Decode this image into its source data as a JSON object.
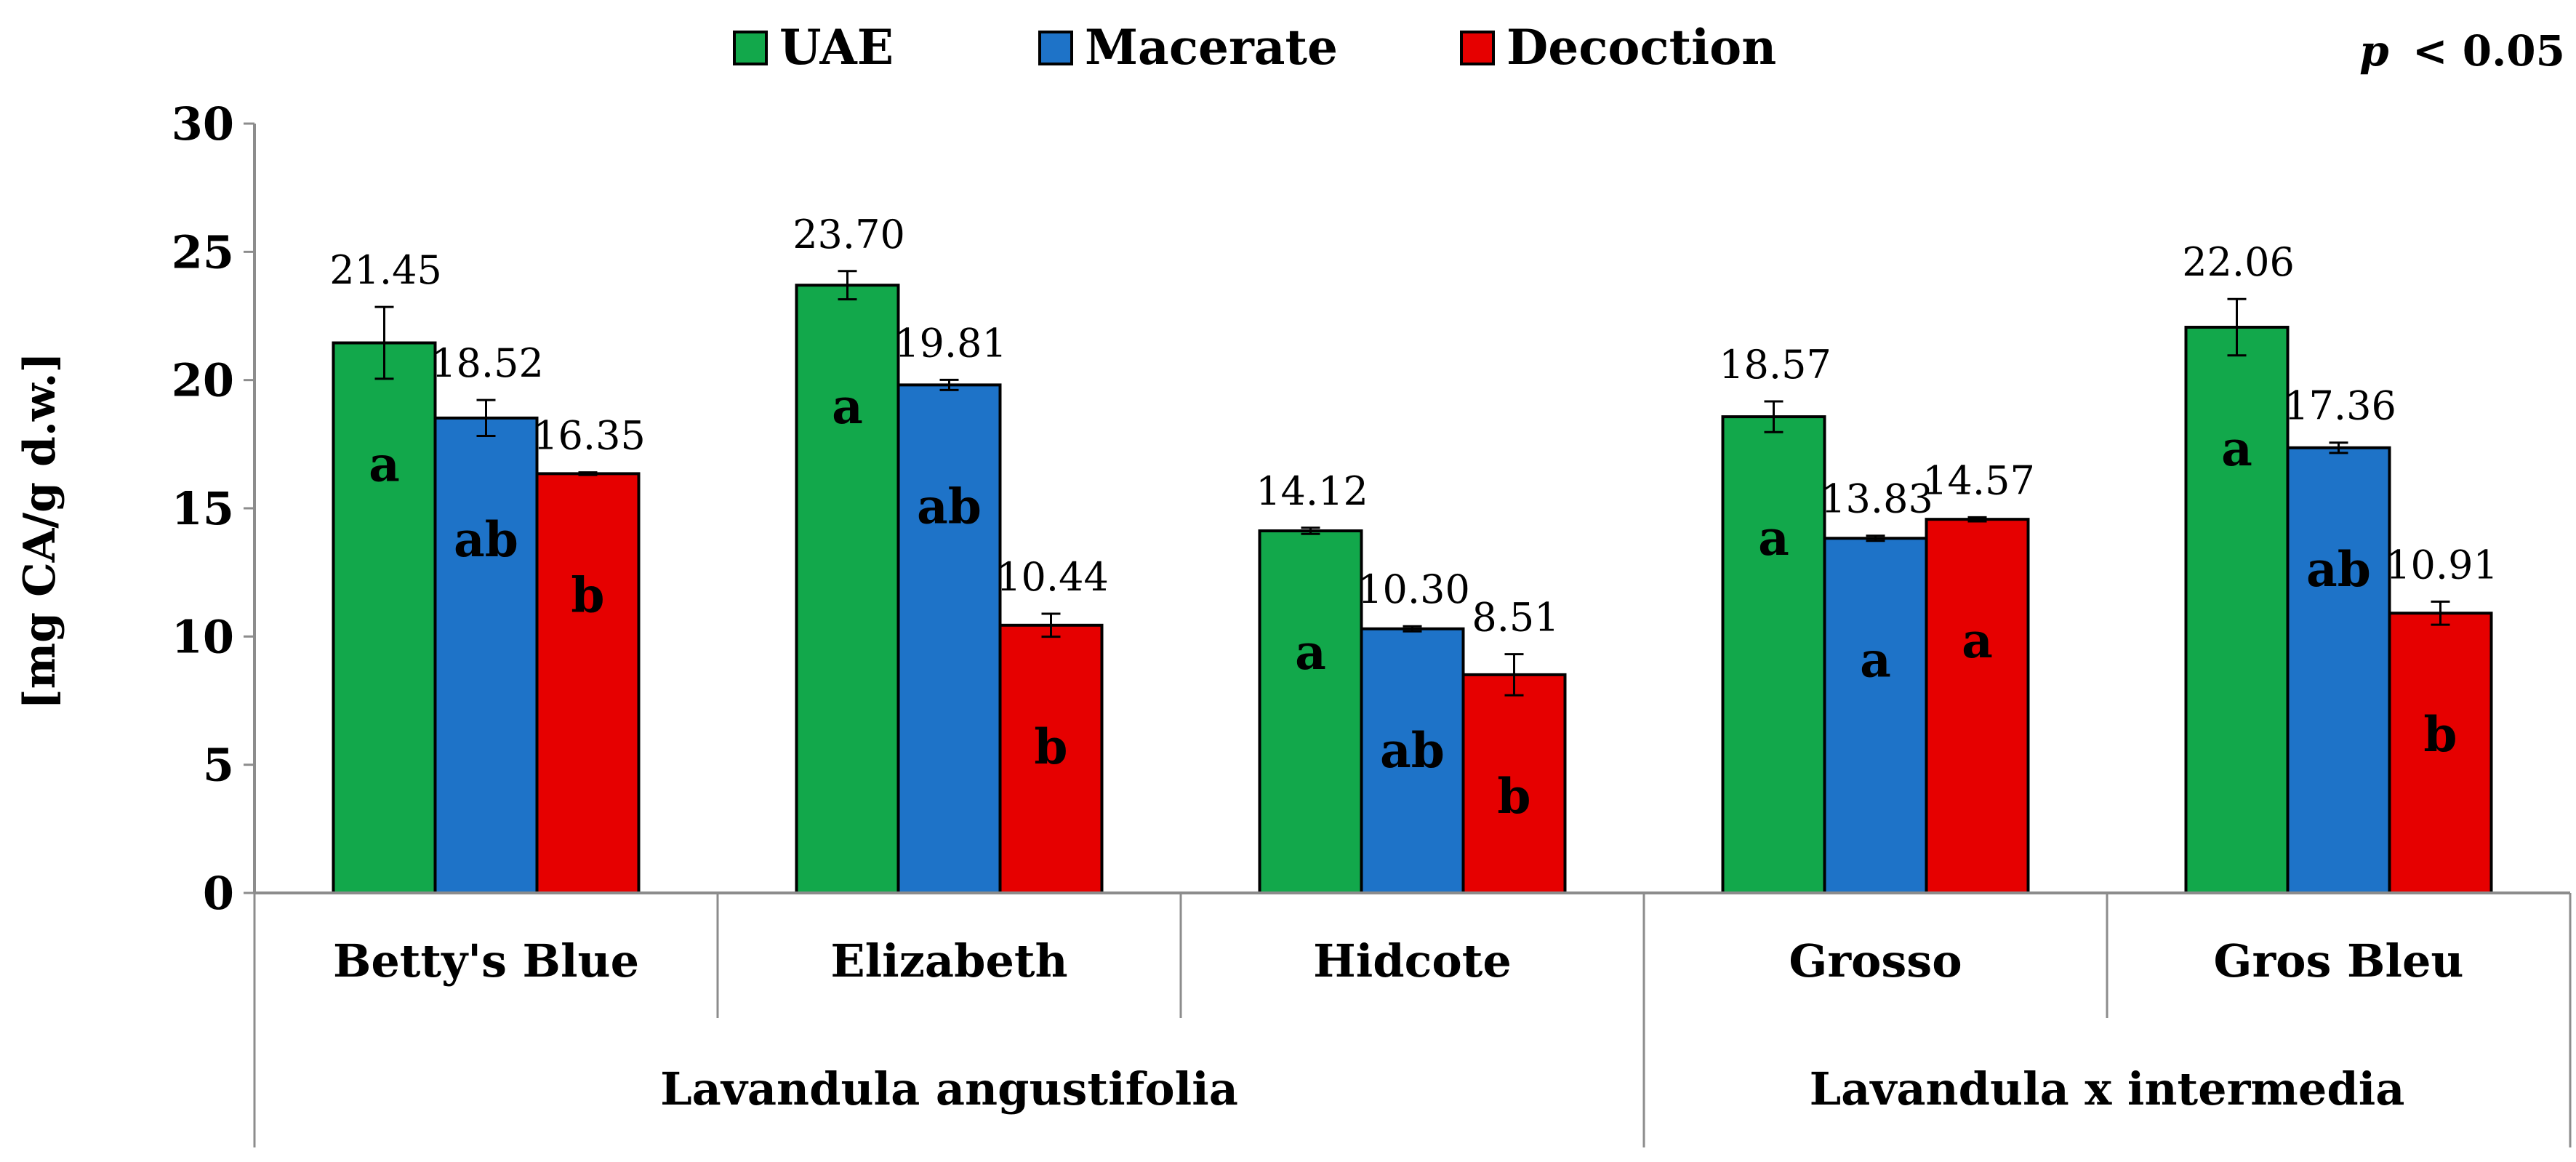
{
  "chart_data": {
    "type": "bar",
    "ylabel": "[mg CA/g d.w.]",
    "ylim": [
      0,
      30
    ],
    "yticks": [
      0,
      5,
      10,
      15,
      20,
      25,
      30
    ],
    "annotation": "< 0.05",
    "annotation_italic": "p",
    "grid": false,
    "legend_position": "top",
    "categories": [
      "Betty's Blue",
      "Elizabeth",
      "Hidcote",
      "Grosso",
      "Gros Bleu"
    ],
    "groups": [
      {
        "label": "Lavandula angustifolia",
        "count": 3
      },
      {
        "label": "Lavandula x intermedia",
        "count": 2
      }
    ],
    "series": [
      {
        "name": "UAE",
        "color": "#12a84b",
        "values": [
          21.45,
          23.7,
          14.12,
          18.57,
          22.06
        ],
        "value_labels": [
          "21.45",
          "23.70",
          "14.12",
          "18.57",
          "22.06"
        ],
        "errors": [
          1.4,
          0.55,
          0.12,
          0.6,
          1.1
        ],
        "letters": [
          "a",
          "a",
          "a",
          "a",
          "a"
        ]
      },
      {
        "name": "Macerate",
        "color": "#1e73c8",
        "values": [
          18.52,
          19.81,
          10.3,
          13.83,
          17.36
        ],
        "value_labels": [
          "18.52",
          "19.81",
          "10.30",
          "13.83",
          "17.36"
        ],
        "errors": [
          0.7,
          0.2,
          0.1,
          0.1,
          0.2
        ],
        "letters": [
          "ab",
          "ab",
          "ab",
          "a",
          "ab"
        ]
      },
      {
        "name": "Decoction",
        "color": "#e60000",
        "values": [
          16.35,
          10.44,
          8.51,
          14.57,
          10.91
        ],
        "value_labels": [
          "16.35",
          "10.44",
          "8.51",
          "14.57",
          "10.91"
        ],
        "errors": [
          0.05,
          0.45,
          0.8,
          0.08,
          0.45
        ],
        "letters": [
          "b",
          "b",
          "b",
          "a",
          "b"
        ]
      }
    ]
  }
}
